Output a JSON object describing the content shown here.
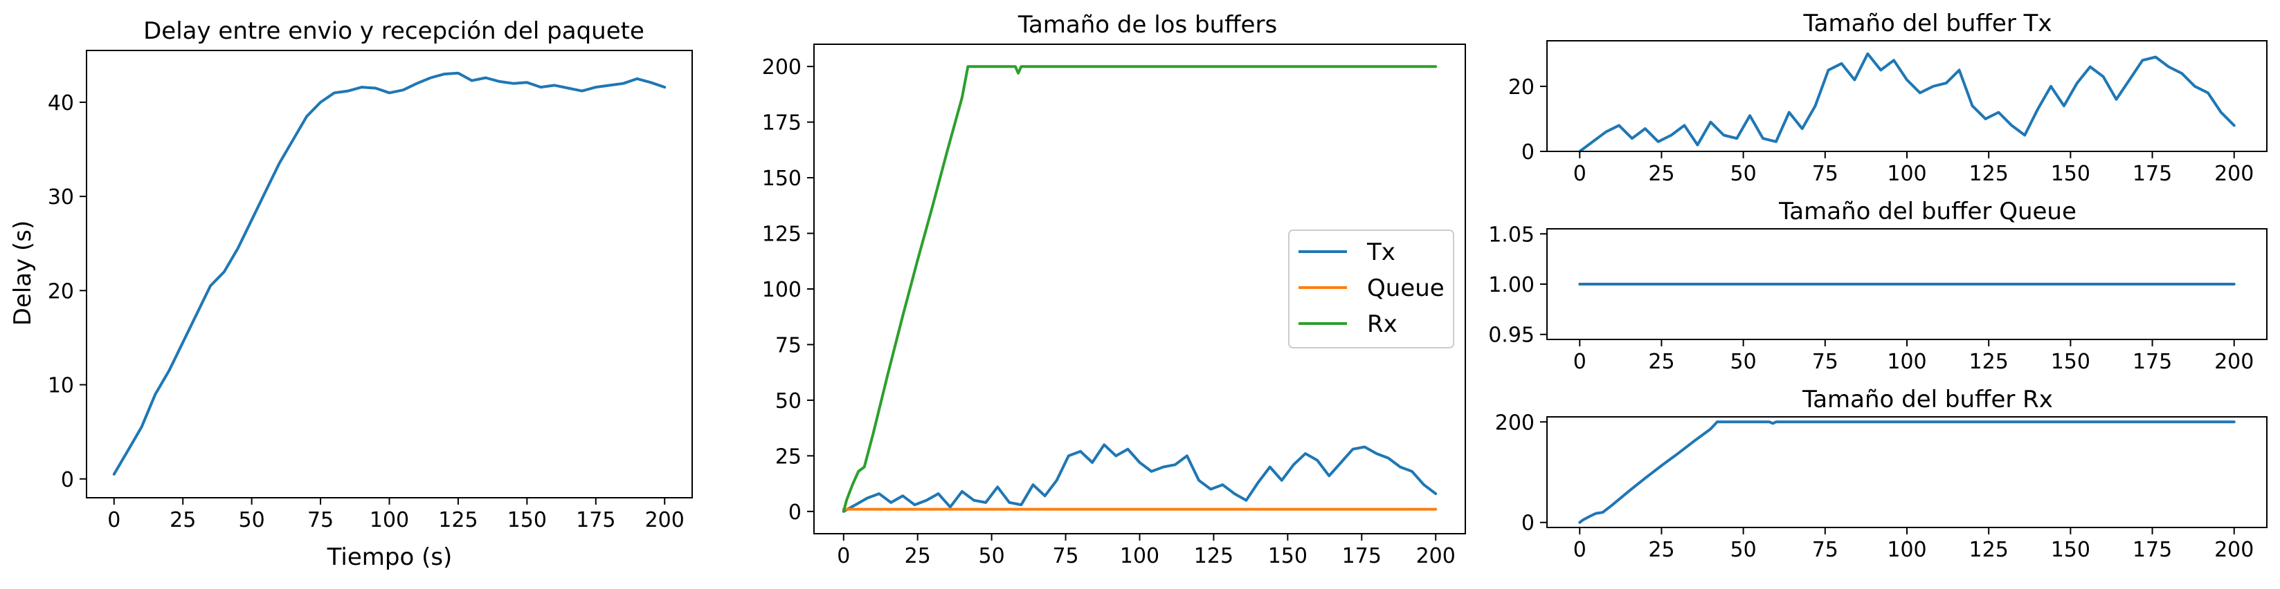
{
  "chart_data": [
    {
      "id": "delay",
      "type": "line",
      "title": "Delay entre envio y recepción del paquete",
      "xlabel": "Tiempo (s)",
      "ylabel": "Delay (s)",
      "xlim": [
        -10,
        210
      ],
      "ylim": [
        -2,
        45.5
      ],
      "xticks": [
        0,
        25,
        50,
        75,
        100,
        125,
        150,
        175,
        200
      ],
      "yticks": [
        0,
        10,
        20,
        30,
        40
      ],
      "grid": false,
      "series": [
        {
          "color": "#1f77b4",
          "x": [
            0,
            5,
            10,
            15,
            20,
            25,
            30,
            35,
            40,
            45,
            50,
            55,
            60,
            65,
            70,
            75,
            80,
            85,
            90,
            95,
            100,
            105,
            110,
            115,
            120,
            125,
            130,
            135,
            140,
            145,
            150,
            155,
            160,
            165,
            170,
            175,
            180,
            185,
            190,
            195,
            200
          ],
          "y": [
            0.5,
            3.0,
            5.5,
            9.0,
            11.5,
            14.5,
            17.5,
            20.5,
            22.0,
            24.5,
            27.5,
            30.5,
            33.5,
            36.0,
            38.5,
            40.0,
            41.0,
            41.2,
            41.6,
            41.5,
            41.0,
            41.3,
            42.0,
            42.6,
            43.0,
            43.1,
            42.3,
            42.6,
            42.2,
            42.0,
            42.1,
            41.6,
            41.8,
            41.5,
            41.2,
            41.6,
            41.8,
            42.0,
            42.5,
            42.1,
            41.6
          ]
        }
      ]
    },
    {
      "id": "buffers",
      "type": "line",
      "title": "Tamaño de los buffers",
      "xlabel": "",
      "ylabel": "",
      "xlim": [
        -10,
        210
      ],
      "ylim": [
        -10,
        210
      ],
      "xticks": [
        0,
        25,
        50,
        75,
        100,
        125,
        150,
        175,
        200
      ],
      "yticks": [
        0,
        25,
        50,
        75,
        100,
        125,
        150,
        175,
        200
      ],
      "grid": false,
      "legend_position": "center-right",
      "series": [
        {
          "name": "Tx",
          "color": "#1f77b4",
          "x": [
            0,
            4,
            8,
            12,
            16,
            20,
            24,
            28,
            32,
            36,
            40,
            44,
            48,
            52,
            56,
            60,
            64,
            68,
            72,
            76,
            80,
            84,
            88,
            92,
            96,
            100,
            104,
            108,
            112,
            116,
            120,
            124,
            128,
            132,
            136,
            140,
            144,
            148,
            152,
            156,
            160,
            164,
            168,
            172,
            176,
            180,
            184,
            188,
            192,
            196,
            200
          ],
          "y": [
            0,
            3,
            6,
            8,
            4,
            7,
            3,
            5,
            8,
            2,
            9,
            5,
            4,
            11,
            4,
            3,
            12,
            7,
            14,
            25,
            27,
            22,
            30,
            25,
            28,
            22,
            18,
            20,
            21,
            25,
            14,
            10,
            12,
            8,
            5,
            13,
            20,
            14,
            21,
            26,
            23,
            16,
            22,
            28,
            29,
            26,
            24,
            20,
            18,
            12,
            8
          ]
        },
        {
          "name": "Queue",
          "color": "#ff7f0e",
          "x": [
            0,
            200
          ],
          "y": [
            1,
            1
          ]
        },
        {
          "name": "Rx",
          "color": "#2ca02c",
          "x": [
            0,
            1,
            3,
            5,
            7,
            10,
            15,
            20,
            25,
            30,
            35,
            40,
            42,
            43,
            50,
            58,
            59,
            60,
            61,
            70,
            100,
            150,
            200
          ],
          "y": [
            0,
            5,
            12,
            18,
            20,
            35,
            62,
            88,
            113,
            137,
            162,
            186,
            200,
            200,
            200,
            200,
            197,
            200,
            200,
            200,
            200,
            200,
            200
          ]
        }
      ]
    },
    {
      "id": "tx",
      "type": "line",
      "title": "Tamaño del buffer Tx",
      "xlabel": "",
      "ylabel": "",
      "xlim": [
        -10,
        210
      ],
      "ylim": [
        0,
        34
      ],
      "xticks": [
        0,
        25,
        50,
        75,
        100,
        125,
        150,
        175,
        200
      ],
      "yticks": [
        0,
        20
      ],
      "grid": false,
      "series": [
        {
          "color": "#1f77b4",
          "x": [
            0,
            4,
            8,
            12,
            16,
            20,
            24,
            28,
            32,
            36,
            40,
            44,
            48,
            52,
            56,
            60,
            64,
            68,
            72,
            76,
            80,
            84,
            88,
            92,
            96,
            100,
            104,
            108,
            112,
            116,
            120,
            124,
            128,
            132,
            136,
            140,
            144,
            148,
            152,
            156,
            160,
            164,
            168,
            172,
            176,
            180,
            184,
            188,
            192,
            196,
            200
          ],
          "y": [
            0,
            3,
            6,
            8,
            4,
            7,
            3,
            5,
            8,
            2,
            9,
            5,
            4,
            11,
            4,
            3,
            12,
            7,
            14,
            25,
            27,
            22,
            30,
            25,
            28,
            22,
            18,
            20,
            21,
            25,
            14,
            10,
            12,
            8,
            5,
            13,
            20,
            14,
            21,
            26,
            23,
            16,
            22,
            28,
            29,
            26,
            24,
            20,
            18,
            12,
            8
          ]
        }
      ]
    },
    {
      "id": "queue",
      "type": "line",
      "title": "Tamaño del buffer Queue",
      "xlabel": "",
      "ylabel": "",
      "xlim": [
        -10,
        210
      ],
      "ylim": [
        0.945,
        1.055
      ],
      "xticks": [
        0,
        25,
        50,
        75,
        100,
        125,
        150,
        175,
        200
      ],
      "yticks": [
        0.95,
        1.0,
        1.05
      ],
      "ytick_labels": [
        "0.95",
        "1.00",
        "1.05"
      ],
      "grid": false,
      "series": [
        {
          "color": "#1f77b4",
          "x": [
            0,
            200
          ],
          "y": [
            1,
            1
          ]
        }
      ]
    },
    {
      "id": "rx",
      "type": "line",
      "title": "Tamaño del buffer Rx",
      "xlabel": "",
      "ylabel": "",
      "xlim": [
        -10,
        210
      ],
      "ylim": [
        -10,
        210
      ],
      "xticks": [
        0,
        25,
        50,
        75,
        100,
        125,
        150,
        175,
        200
      ],
      "yticks": [
        0,
        200
      ],
      "grid": false,
      "series": [
        {
          "color": "#1f77b4",
          "x": [
            0,
            1,
            3,
            5,
            7,
            10,
            15,
            20,
            25,
            30,
            35,
            40,
            42,
            43,
            50,
            58,
            59,
            60,
            61,
            70,
            100,
            150,
            200
          ],
          "y": [
            0,
            5,
            12,
            18,
            20,
            35,
            62,
            88,
            113,
            137,
            162,
            186,
            200,
            200,
            200,
            200,
            197,
            200,
            200,
            200,
            200,
            200,
            200
          ]
        }
      ]
    }
  ]
}
